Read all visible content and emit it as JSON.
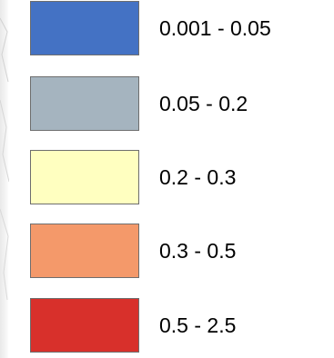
{
  "legend": {
    "classes": [
      {
        "label": "0.001 - 0.05",
        "color": "#4472c4"
      },
      {
        "label": "0.05 - 0.2",
        "color": "#a5b4bf"
      },
      {
        "label": "0.2 - 0.3",
        "color": "#ffffc0"
      },
      {
        "label": "0.3 - 0.5",
        "color": "#f4996a"
      },
      {
        "label": "0.5 - 2.5",
        "color": "#d8302b"
      }
    ]
  }
}
